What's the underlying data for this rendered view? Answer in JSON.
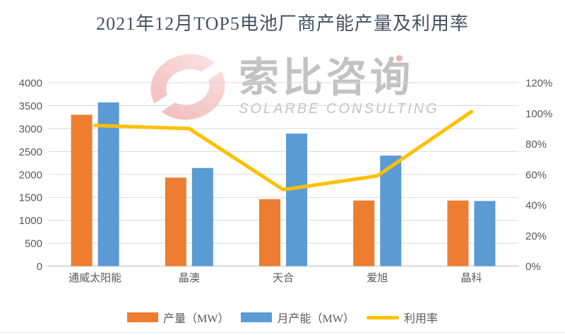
{
  "title": "2021年12月TOP5电池厂商产能产量及利用率",
  "watermark": {
    "logo_icon": "solarbe-swoosh-ellipse",
    "cn": "索比咨询",
    "en": "SOLARBE CONSULTING"
  },
  "colors": {
    "production_bar": "#ED7D31",
    "capacity_bar": "#5B9BD5",
    "utilization_line": "#FFC000",
    "gridline": "#D9D9D9",
    "axis_line": "#D9D9D9",
    "axis_text": "#595959",
    "title_text": "#44525E",
    "watermark_pink": "#EFA3A3",
    "watermark_gray": "#AEAEAE"
  },
  "chart_data": {
    "type": "bar",
    "subtype": "grouped-bars-with-line-overlay",
    "title": "2021年12月TOP5电池厂商产能产量及利用率",
    "categories": [
      "通威太阳能",
      "晶澳",
      "天合",
      "爱旭",
      "晶科"
    ],
    "series": [
      {
        "name": "产量（MW）",
        "type": "bar",
        "axis": "left",
        "color": "#ED7D31",
        "values": [
          3300,
          1930,
          1460,
          1430,
          1430
        ]
      },
      {
        "name": "月产能（MW）",
        "type": "bar",
        "axis": "left",
        "color": "#5B9BD5",
        "values": [
          3570,
          2140,
          2890,
          2410,
          1420
        ]
      },
      {
        "name": "利用率",
        "type": "line",
        "axis": "right",
        "color": "#FFC000",
        "unit": "%",
        "values": [
          92,
          90,
          50,
          59,
          101
        ]
      }
    ],
    "left_axis": {
      "min": 0,
      "max": 4000,
      "step": 500,
      "tick_labels": [
        "0",
        "500",
        "1000",
        "1500",
        "2000",
        "2500",
        "3000",
        "3500",
        "4000"
      ]
    },
    "right_axis": {
      "min": 0,
      "max": 120,
      "step": 20,
      "unit": "%",
      "tick_labels": [
        "0%",
        "20%",
        "40%",
        "60%",
        "80%",
        "100%",
        "120%"
      ]
    },
    "grid": true,
    "legend_position": "bottom",
    "xlabel": "",
    "ylabel": ""
  }
}
